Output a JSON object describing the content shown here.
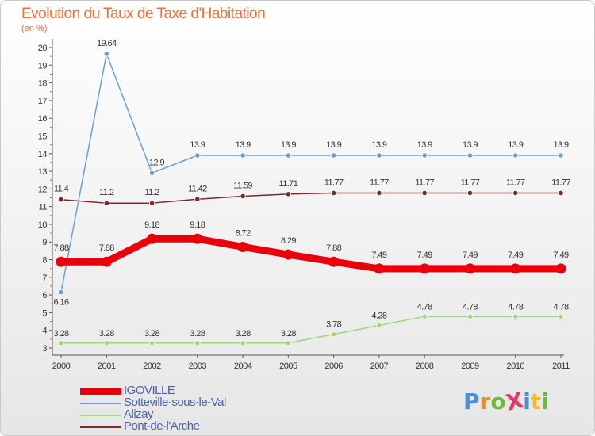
{
  "title": "Evolution du Taux de Taxe d'Habitation",
  "subtitle": "(en %)",
  "logo": {
    "text": "ProXiti",
    "colors": [
      "#4d8fd6",
      "#f08a24",
      "#6fb93f",
      "#e23c6a",
      "#4d8fd6",
      "#f0c020",
      "#6fb93f"
    ]
  },
  "chart_data": {
    "type": "line",
    "x": [
      2000,
      2001,
      2002,
      2003,
      2004,
      2005,
      2006,
      2007,
      2008,
      2009,
      2010,
      2011
    ],
    "ylim": [
      3,
      20
    ],
    "yticks": [
      3,
      4,
      5,
      6,
      7,
      8,
      9,
      10,
      11,
      12,
      13,
      14,
      15,
      16,
      17,
      18,
      19,
      20
    ],
    "grid": false,
    "legend": "bottom-left",
    "series": [
      {
        "name": "IGOVILLE",
        "color": "#e8000c",
        "width": "thick",
        "values": [
          7.88,
          7.88,
          9.18,
          9.18,
          8.72,
          8.29,
          7.88,
          7.49,
          7.49,
          7.49,
          7.49,
          7.49
        ],
        "labels": [
          "7.88",
          "7.88",
          "9.18",
          "9.18",
          "8.72",
          "8.29",
          "7.88",
          "7.49",
          "7.49",
          "7.49",
          "7.49",
          "7.49"
        ]
      },
      {
        "name": "Sotteville-sous-le-Val",
        "color": "#6a9fd6",
        "width": "thin",
        "values": [
          6.16,
          19.64,
          12.9,
          13.9,
          13.9,
          13.9,
          13.9,
          13.9,
          13.9,
          13.9,
          13.9,
          13.9
        ],
        "labels": [
          "6.16",
          "19.64",
          "12.9",
          "13.9",
          "13.9",
          "13.9",
          "13.9",
          "13.9",
          "13.9",
          "13.9",
          "13.9",
          "13.9"
        ]
      },
      {
        "name": "Alizay",
        "color": "#9bd87a",
        "width": "thin",
        "values": [
          3.28,
          3.28,
          3.28,
          3.28,
          3.28,
          3.28,
          3.78,
          4.28,
          4.78,
          4.78,
          4.78,
          4.78
        ],
        "labels": [
          "3.28",
          "3.28",
          "3.28",
          "3.28",
          "3.28",
          "3.28",
          "3.78",
          "4.28",
          "4.78",
          "4.78",
          "4.78",
          "4.78"
        ]
      },
      {
        "name": "Pont-de-l'Arche",
        "color": "#7a2a2a",
        "width": "thin",
        "values": [
          11.4,
          11.2,
          11.2,
          11.42,
          11.59,
          11.71,
          11.77,
          11.77,
          11.77,
          11.77,
          11.77,
          11.77
        ],
        "labels": [
          "11.4",
          "11.2",
          "11.2",
          "11.42",
          "11.59",
          "11.71",
          "11.77",
          "11.77",
          "11.77",
          "11.77",
          "11.77",
          "11.77"
        ]
      }
    ]
  }
}
